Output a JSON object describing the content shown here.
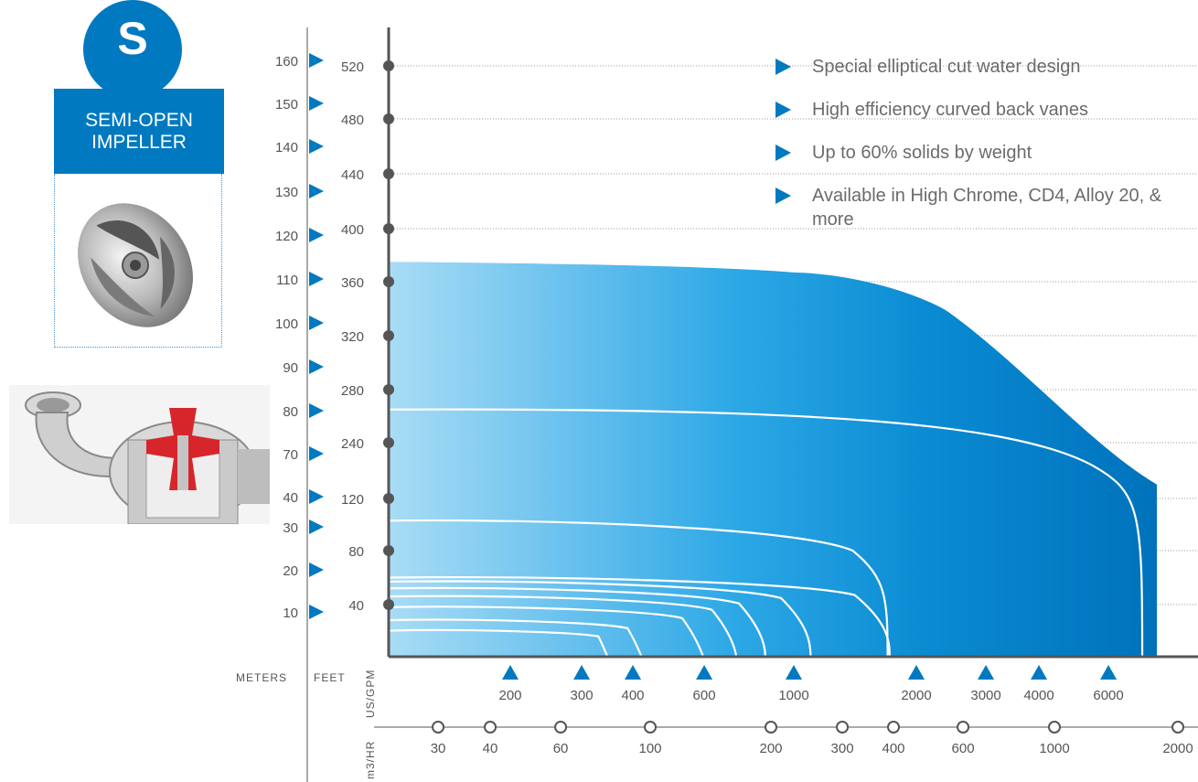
{
  "badge": {
    "letter": "S",
    "line1": "SEMI-OPEN",
    "line2": "IMPELLER"
  },
  "photos": {
    "impeller": "impeller-photo",
    "pump": "pump-cutaway-photo"
  },
  "bullets": [
    {
      "text": "Special elliptical cut water design"
    },
    {
      "text": "High efficiency curved back vanes"
    },
    {
      "text": "Up to 60% solids by weight"
    },
    {
      "text": "Available in High Chrome, CD4, Alloy 20, & more"
    }
  ],
  "colors": {
    "brand_blue": "#0079c1",
    "light_blue": "#a9dcf5",
    "axis": "#555555",
    "dot": "#555555"
  },
  "axes": {
    "meters_label": "METERS",
    "feet_label": "FEET",
    "gpm_label": "US/GPM",
    "m3hr_label": "m3/HR"
  },
  "chart_data": {
    "type": "area",
    "title": "",
    "xlabel": "US/GPM",
    "ylabel": "FEET",
    "x_scale": "log",
    "meters_ticks": [
      160,
      150,
      140,
      130,
      120,
      110,
      100,
      90,
      80,
      70,
      40,
      30,
      20,
      10
    ],
    "feet_ticks": [
      520,
      480,
      440,
      400,
      360,
      320,
      280,
      240,
      120,
      80,
      40
    ],
    "gpm_ticks": [
      200,
      300,
      400,
      600,
      1000,
      2000,
      3000,
      4000,
      6000
    ],
    "m3hr_ticks": [
      30,
      40,
      60,
      100,
      200,
      300,
      400,
      600,
      1000,
      2000
    ],
    "envelope": {
      "name": "",
      "points": [
        {
          "x": 100,
          "y": 375
        },
        {
          "x": 1000,
          "y": 367
        },
        {
          "x": 2000,
          "y": 348
        },
        {
          "x": 4000,
          "y": 285
        },
        {
          "x": 8000,
          "y": 150
        },
        {
          "x": 8000,
          "y": 0
        },
        {
          "x": 100,
          "y": 0
        }
      ]
    },
    "curves": [
      {
        "shutoff_head": 265,
        "max_flow": 7300
      },
      {
        "shutoff_head": 103,
        "max_flow": 1700
      },
      {
        "shutoff_head": 60,
        "max_flow": 1720
      },
      {
        "shutoff_head": 57,
        "max_flow": 1100
      },
      {
        "shutoff_head": 52,
        "max_flow": 850
      },
      {
        "shutoff_head": 46,
        "max_flow": 720
      },
      {
        "shutoff_head": 38,
        "max_flow": 600
      },
      {
        "shutoff_head": 28,
        "max_flow": 430
      },
      {
        "shutoff_head": 20,
        "max_flow": 360
      }
    ]
  }
}
